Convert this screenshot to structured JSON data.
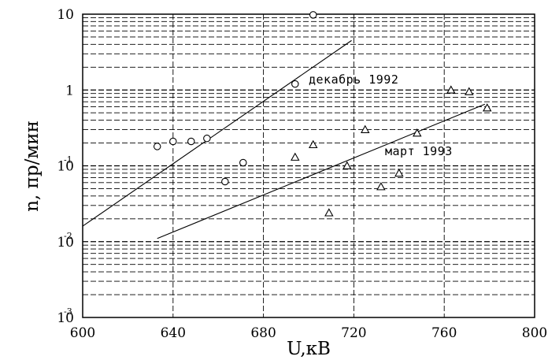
{
  "chart_data": {
    "type": "scatter",
    "title": "",
    "xlabel": "U,кВ",
    "ylabel": "n, пр/мин",
    "xlim": [
      600,
      800
    ],
    "ylim": [
      0.001,
      10
    ],
    "yscale": "log",
    "grid": true,
    "x_ticks": [
      "600",
      "640",
      "680",
      "720",
      "760",
      "800"
    ],
    "y_ticks": [
      {
        "base": "10",
        "exp": "-3",
        "value": 0.001
      },
      {
        "base": "10",
        "exp": "-2",
        "value": 0.01
      },
      {
        "base": "10",
        "exp": "-1",
        "value": 0.1
      },
      {
        "base": "1",
        "exp": "",
        "value": 1
      },
      {
        "base": "10",
        "exp": "",
        "value": 10
      }
    ],
    "series": [
      {
        "name": "декабрь 1992",
        "marker": "circle",
        "points": [
          {
            "x": 633,
            "y": 0.18
          },
          {
            "x": 640,
            "y": 0.21
          },
          {
            "x": 648,
            "y": 0.21
          },
          {
            "x": 655,
            "y": 0.23
          },
          {
            "x": 663,
            "y": 0.062
          },
          {
            "x": 671,
            "y": 0.11
          },
          {
            "x": 694,
            "y": 1.2
          },
          {
            "x": 702,
            "y": 9.8
          }
        ],
        "fit": {
          "x": [
            600,
            719
          ],
          "y": [
            0.016,
            4.5
          ]
        }
      },
      {
        "name": "март 1993",
        "marker": "triangle",
        "points": [
          {
            "x": 694,
            "y": 0.13
          },
          {
            "x": 702,
            "y": 0.19
          },
          {
            "x": 709,
            "y": 0.024
          },
          {
            "x": 717,
            "y": 0.1
          },
          {
            "x": 725,
            "y": 0.3
          },
          {
            "x": 732,
            "y": 0.053
          },
          {
            "x": 740,
            "y": 0.08
          },
          {
            "x": 748,
            "y": 0.27
          },
          {
            "x": 763,
            "y": 1.0
          },
          {
            "x": 771,
            "y": 0.95
          },
          {
            "x": 779,
            "y": 0.58
          }
        ],
        "fit": {
          "x": [
            633,
            778
          ],
          "y": [
            0.011,
            0.65
          ]
        }
      }
    ]
  }
}
